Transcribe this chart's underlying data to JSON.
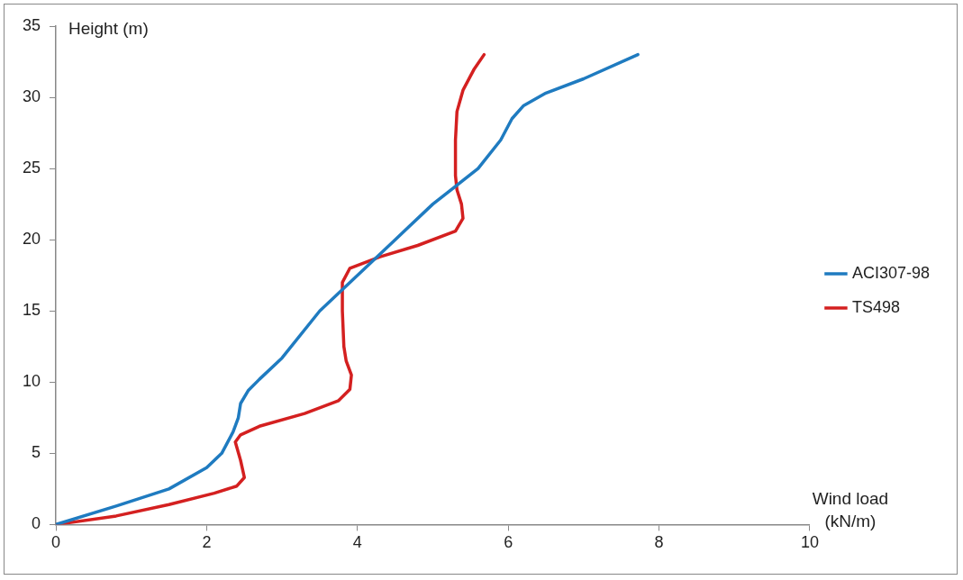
{
  "chart_data": {
    "type": "line",
    "xlabel": "Wind load (kN/m)",
    "ylabel": "Height (m)",
    "xlim": [
      0,
      10
    ],
    "xticks": [
      0,
      2,
      4,
      6,
      8,
      10
    ],
    "ylim": [
      0,
      35
    ],
    "yticks": [
      0,
      5,
      10,
      15,
      20,
      25,
      30,
      35
    ],
    "grid": false,
    "legend": "right",
    "marker": "none",
    "line_style": "solid",
    "series": [
      {
        "name": "ACI307-98",
        "color": "#1f7bc0",
        "x": [
          0,
          0.8,
          1.5,
          2.0,
          2.2,
          2.35,
          2.42,
          2.45,
          2.55,
          2.7,
          3.0,
          3.5,
          4.0,
          4.5,
          5.0,
          5.6,
          5.9,
          6.05,
          6.2,
          6.5,
          7.0,
          7.72
        ],
        "values": [
          0,
          1.3,
          2.5,
          4,
          5,
          6.5,
          7.5,
          8.5,
          9.4,
          10.2,
          11.7,
          15,
          17.5,
          20,
          22.5,
          25,
          27,
          28.5,
          29.4,
          30.3,
          31.3,
          33
        ]
      },
      {
        "name": "TS498",
        "color": "#d42020",
        "x": [
          0,
          0.8,
          1.5,
          2.1,
          2.4,
          2.5,
          2.45,
          2.38,
          2.45,
          2.7,
          3.3,
          3.75,
          3.9,
          3.92,
          3.85,
          3.82,
          3.8,
          3.8,
          3.9,
          4.3,
          4.8,
          5.3,
          5.4,
          5.38,
          5.32,
          5.3,
          5.3,
          5.32,
          5.4,
          5.55,
          5.68
        ],
        "values": [
          0,
          0.6,
          1.4,
          2.2,
          2.7,
          3.3,
          4.5,
          5.8,
          6.3,
          6.9,
          7.8,
          8.7,
          9.5,
          10.5,
          11.5,
          12.5,
          15,
          17,
          18,
          18.8,
          19.6,
          20.6,
          21.5,
          22.5,
          23.5,
          24.5,
          27,
          29,
          30.5,
          32,
          33
        ]
      }
    ]
  }
}
